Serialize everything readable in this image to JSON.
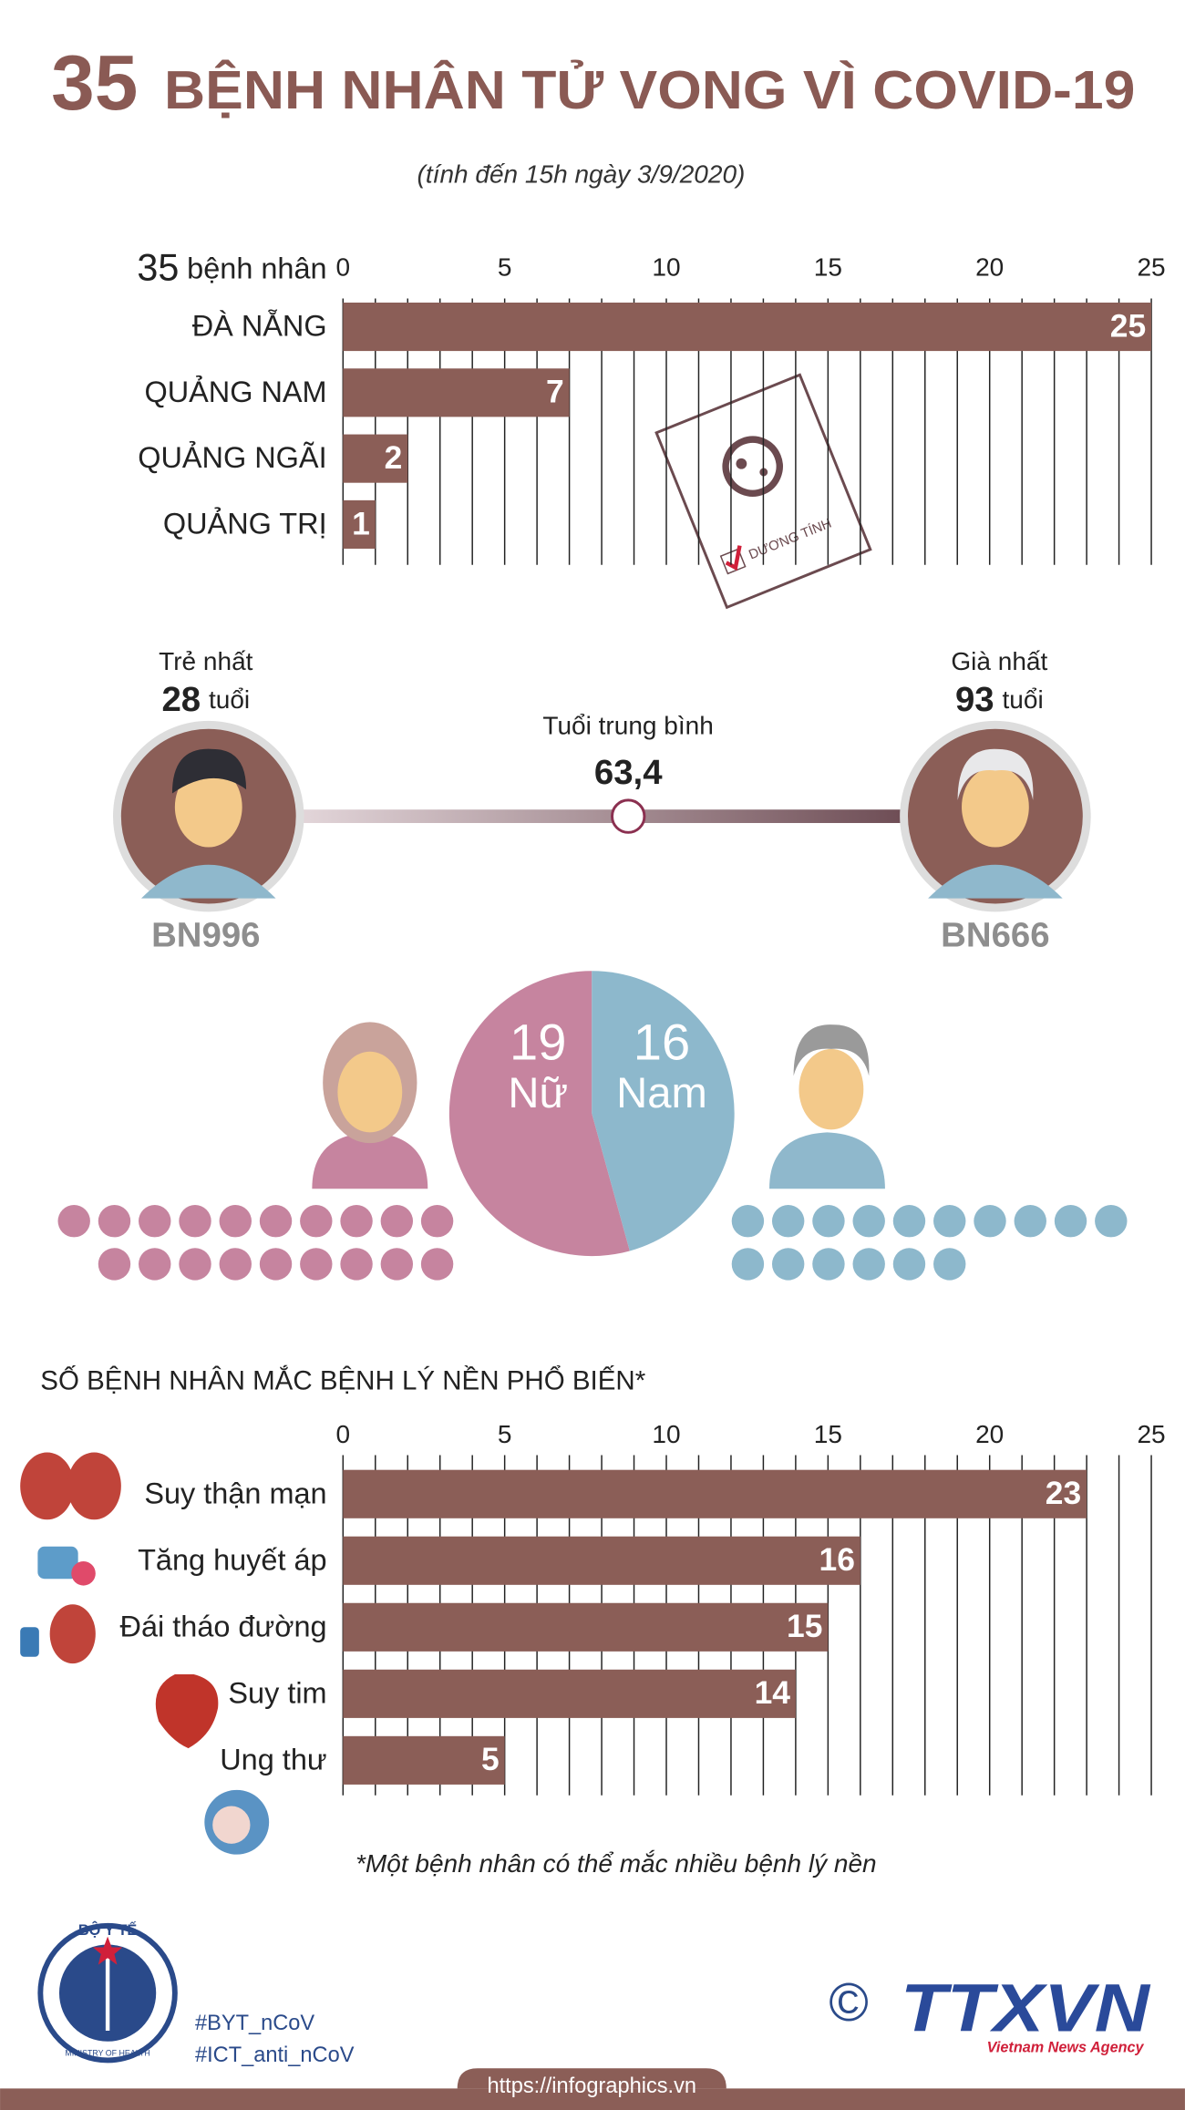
{
  "header": {
    "title_number": 35,
    "title": "BỆNH NHÂN TỬ VONG VÌ COVID-19",
    "subtitle": "(tính đến 15h ngày 3/9/2020)"
  },
  "chart_data": [
    {
      "type": "bar",
      "total": 35,
      "title": "bệnh nhân",
      "categories": [
        "ĐÀ NẴNG",
        "QUẢNG NAM",
        "QUẢNG NGÃI",
        "QUẢNG TRỊ"
      ],
      "values": [
        25,
        7,
        2,
        1
      ],
      "color": "#8b5e57",
      "xlim": [
        0,
        25
      ],
      "xticks": [
        0,
        5,
        10,
        15,
        20,
        25
      ],
      "grid": true,
      "annotation": "DƯƠNG TÍNH"
    },
    {
      "type": "pie",
      "categories": [
        "Nữ",
        "Nam"
      ],
      "values": [
        19,
        16
      ],
      "colors": [
        "#c6849f",
        "#8db8cc"
      ]
    },
    {
      "type": "bar",
      "title": "SỐ BỆNH NHÂN MẮC BỆNH LÝ NỀN PHỔ BIẾN*",
      "categories": [
        "Suy thận mạn",
        "Tăng huyết áp",
        "Đái tháo đường",
        "Suy tim",
        "Ung thư"
      ],
      "values": [
        23,
        16,
        15,
        14,
        5
      ],
      "color": "#8b5e57",
      "xlim": [
        0,
        25
      ],
      "xticks": [
        0,
        5,
        10,
        15,
        20,
        25
      ],
      "grid": true,
      "note": "*Một bệnh nhân có thể mắc nhiều bệnh lý nền"
    }
  ],
  "age": {
    "youngest": {
      "label": "Trẻ nhất",
      "value": 28,
      "unit": "tuổi",
      "patient": "BN996"
    },
    "oldest": {
      "label": "Già nhất",
      "value": 93,
      "unit": "tuổi",
      "patient": "BN666"
    },
    "average": {
      "label": "Tuổi trung bình",
      "value": {
        "value": 63.4,
        "label": "63,4"
      }
    }
  },
  "footer": {
    "logo_text": "BỘ Y TẾ",
    "logo_sub": "MINISTRY OF HEALTH",
    "hashtags": [
      "#BYT_nCoV",
      "#ICT_anti_nCoV"
    ],
    "copyright": "©",
    "agency": "TTXVN",
    "agency_sub": "Vietnam News Agency",
    "url": "https://infographics.vn"
  }
}
